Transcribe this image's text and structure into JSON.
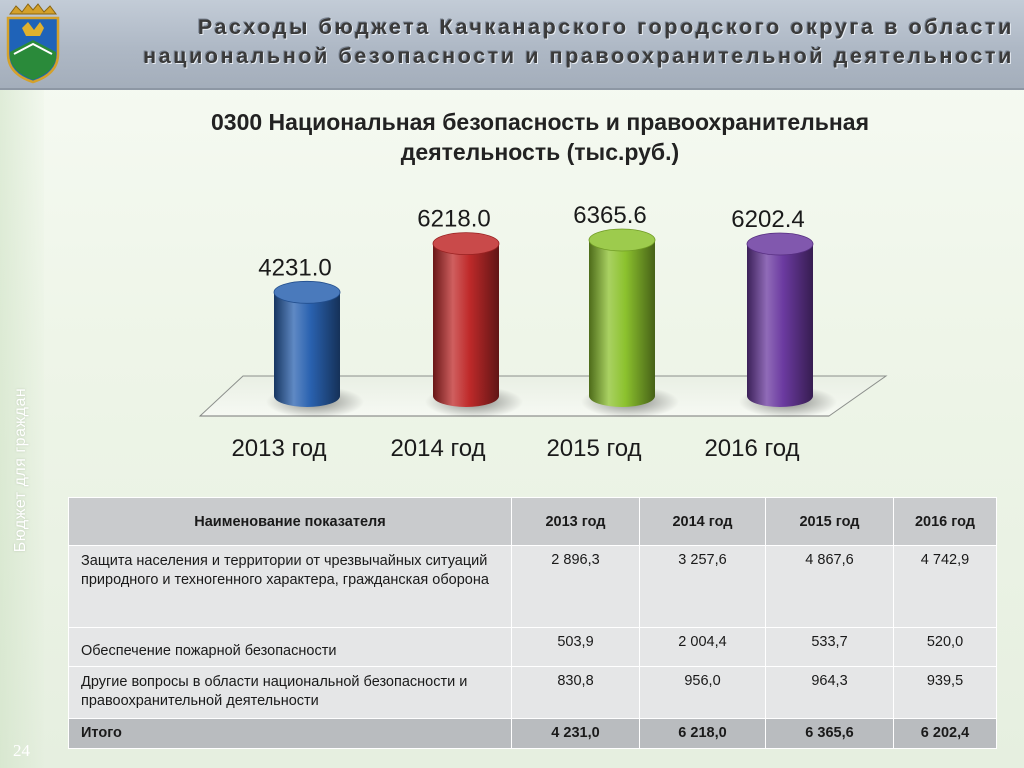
{
  "header": {
    "title_line1": "Расходы бюджета Качканарского городского округа в области",
    "title_line2": "национальной безопасности и правоохранительной деятельности"
  },
  "sidebar": {
    "label": "Бюджет для граждан",
    "page_number": "24"
  },
  "chart_data": {
    "type": "bar",
    "title_line1": "0300 Национальная безопасность и правоохранительная",
    "title_line2": "деятельность (тыс.руб.)",
    "categories": [
      "2013 год",
      "2014 год",
      "2015 год",
      "2016 год"
    ],
    "values": [
      4231.0,
      6218.0,
      6365.6,
      6202.4
    ],
    "value_labels": [
      "4231.0",
      "6218.0",
      "6365.6",
      "6202.4"
    ],
    "colors": [
      "#2a62b0",
      "#bf2a2a",
      "#8cc22e",
      "#6b3aa0"
    ],
    "style": "3d-cylinder",
    "grid": false,
    "legend": "none"
  },
  "table": {
    "headers": [
      "Наименование показателя",
      "2013 год",
      "2014 год",
      "2015 год",
      "2016 год"
    ],
    "rows": [
      {
        "name": "Защита населения и территории от чрезвычайных ситуаций природного и техногенного характера, гражданская оборона",
        "values": [
          "2 896,3",
          "3 257,6",
          "4 867,6",
          "4 742,9"
        ]
      },
      {
        "name": "Обеспечение пожарной безопасности",
        "values": [
          "503,9",
          "2 004,4",
          "533,7",
          "520,0"
        ]
      },
      {
        "name": "Другие вопросы в области национальной безопасности и правоохранительной деятельности",
        "values": [
          "830,8",
          "956,0",
          "964,3",
          "939,5"
        ]
      }
    ],
    "total": {
      "name": "Итого",
      "values": [
        "4 231,0",
        "6 218,0",
        "6 365,6",
        "6 202,4"
      ]
    }
  }
}
